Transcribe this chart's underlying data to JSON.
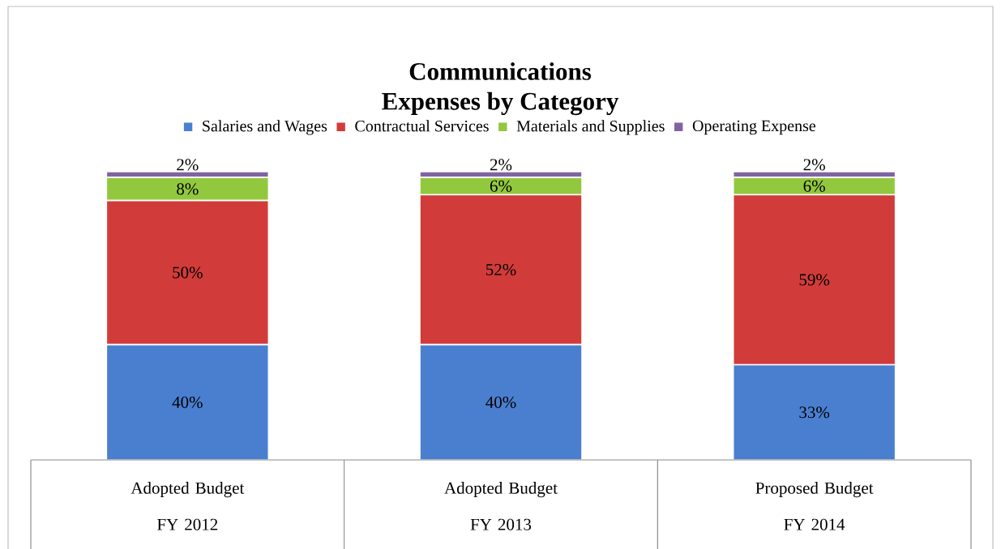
{
  "chart_data": {
    "type": "bar",
    "stacked": true,
    "title": "Communications",
    "subtitle": "Expenses by Category",
    "categories": [
      "Adopted Budget FY 2012",
      "Adopted Budget FY 2013",
      "Proposed Budget FY 2014"
    ],
    "series": [
      {
        "name": "Salaries and Wages",
        "color": "#4a7fd0",
        "values": [
          40,
          40,
          33
        ],
        "value_labels": [
          "40%",
          "40%",
          "33%"
        ]
      },
      {
        "name": "Contractual Services",
        "color": "#d13c3a",
        "values": [
          50,
          52,
          59
        ],
        "value_labels": [
          "50%",
          "52%",
          "59%"
        ]
      },
      {
        "name": "Materials and Supplies",
        "color": "#92c83e",
        "values": [
          8,
          6,
          6
        ],
        "value_labels": [
          "8%",
          "6%",
          "6%"
        ]
      },
      {
        "name": "Operating Expense",
        "color": "#8064a2",
        "values": [
          2,
          2,
          2
        ],
        "value_labels": [
          "2%",
          "2%",
          "2%"
        ]
      }
    ],
    "legend": "top",
    "relative": false
  }
}
